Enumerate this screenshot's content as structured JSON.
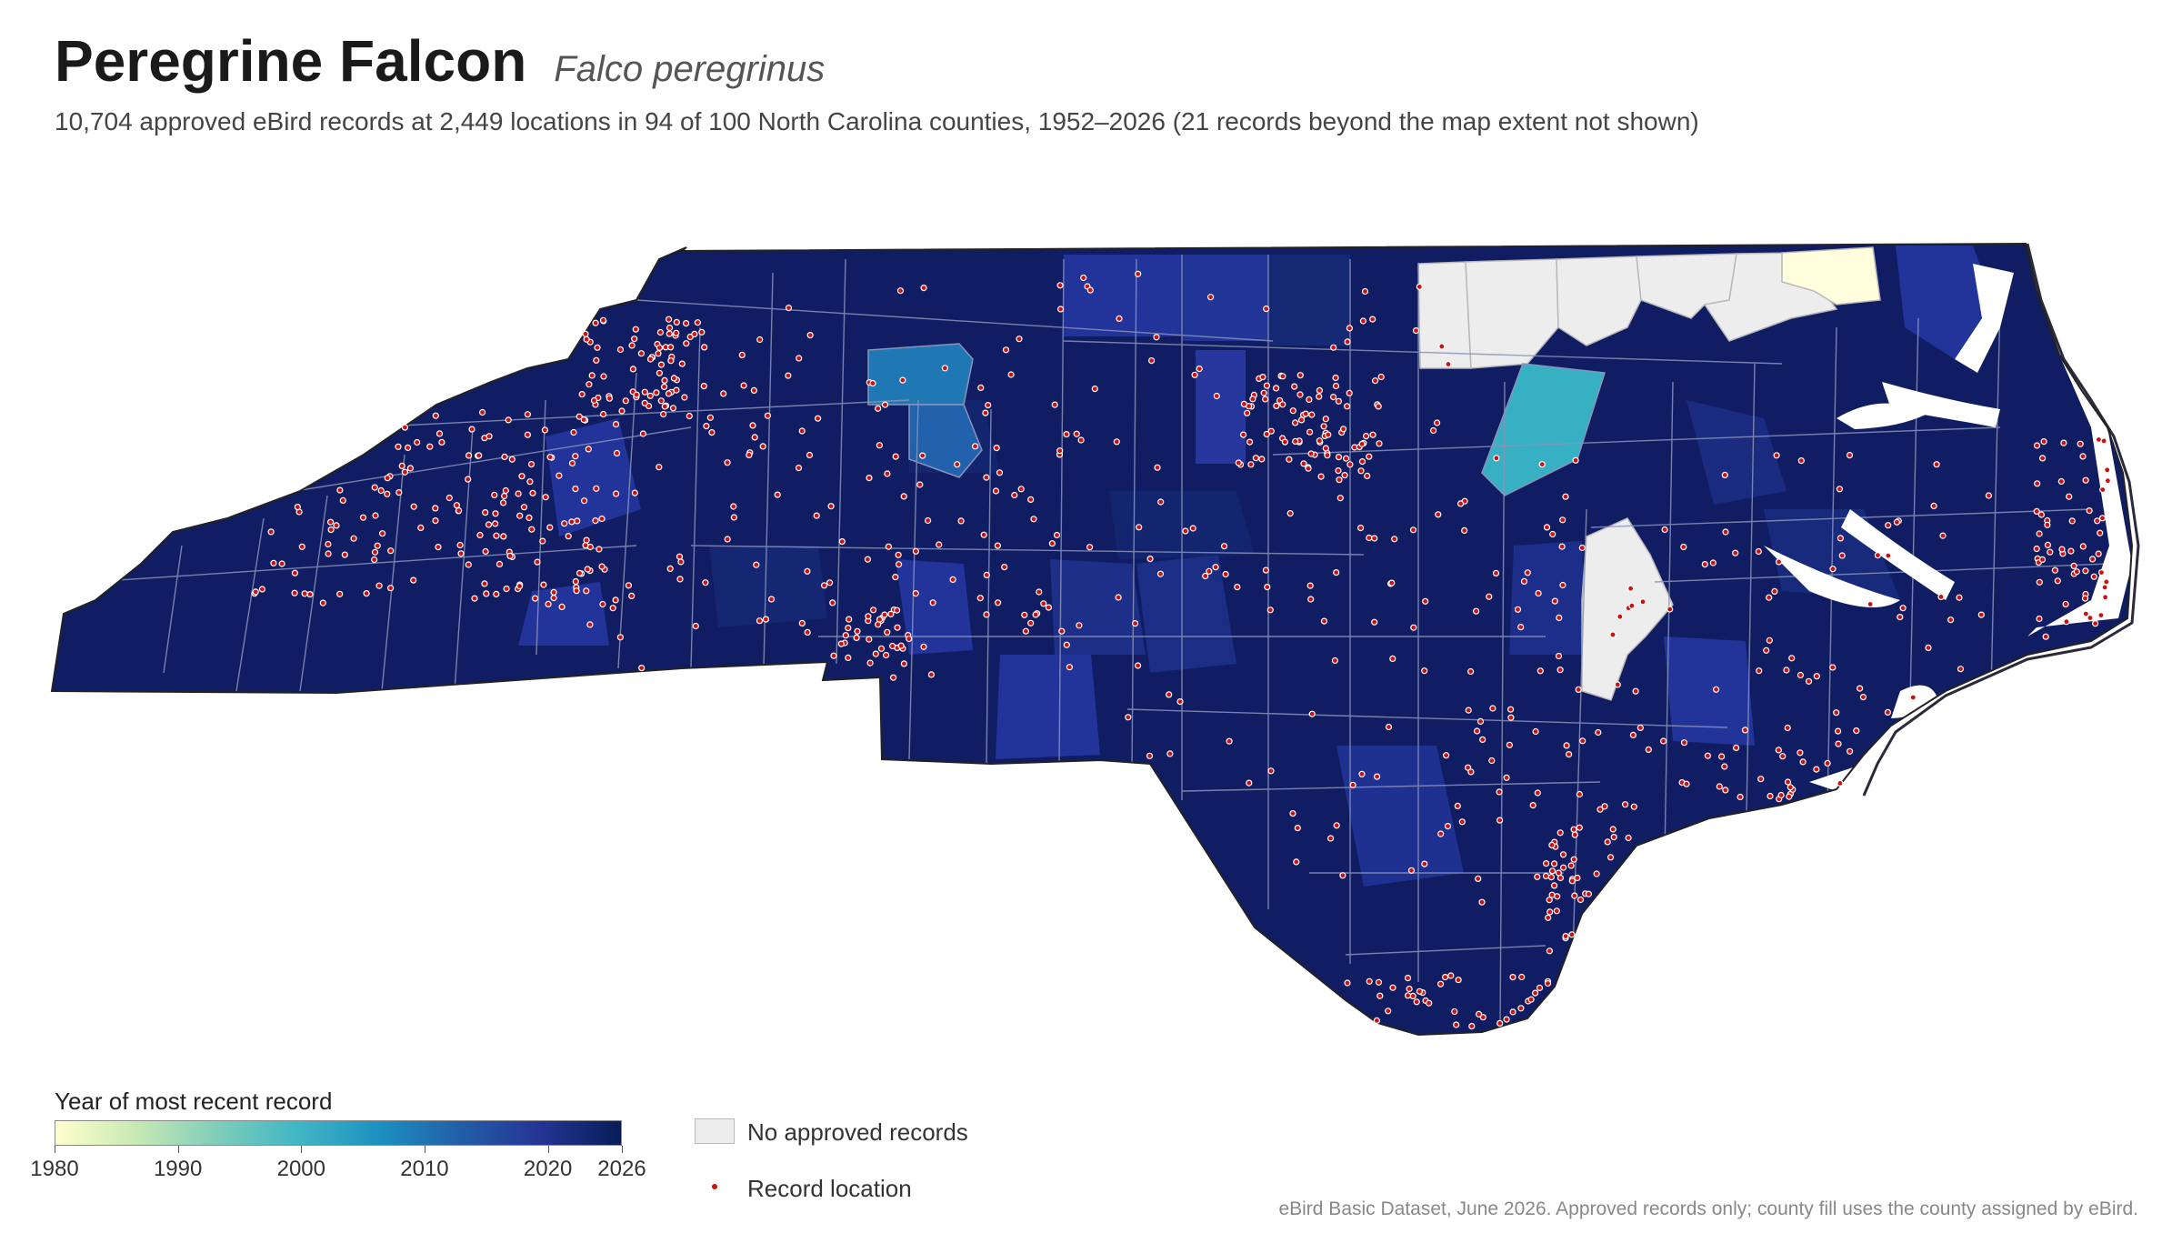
{
  "header": {
    "title": "Peregrine Falcon",
    "scientific_name": "Falco peregrinus",
    "summary": "10,704 approved eBird records at 2,449 locations in 94 of 100 North Carolina counties, 1952–2026 (21 records beyond the map extent not shown)"
  },
  "legend": {
    "title": "Year of most recent record",
    "ticks": [
      "1980",
      "1990",
      "2000",
      "2010",
      "2020",
      "2026"
    ],
    "range": [
      1980,
      2026
    ],
    "gradient_colors": [
      "#ffffcc",
      "#c7e9b4",
      "#7fcdbb",
      "#41b6c4",
      "#1d91c0",
      "#225ea8",
      "#253494",
      "#081d58"
    ],
    "no_records_label": "No approved records",
    "no_records_color": "#ededed",
    "record_location_label": "Record location",
    "record_color": "#cc1111"
  },
  "caption": "eBird Basic Dataset, June 2026. Approved records only; county fill uses the county assigned by eBird.",
  "map_data": {
    "state_outline_color": "#222222",
    "county_border_color": "#8a93b8",
    "highlighted_counties": [
      {
        "label": "most-recent-1980",
        "year": 1980,
        "color": "#ffffdd"
      },
      {
        "label": "most-recent-2005",
        "year": 2005,
        "color": "#38b0c4"
      },
      {
        "label": "most-recent-2010",
        "year": 2010,
        "color": "#1f78b4"
      },
      {
        "label": "most-recent-2013",
        "year": 2013,
        "color": "#2262ac"
      },
      {
        "label": "most-recent-2018",
        "year": 2018,
        "color": "#22339a"
      }
    ],
    "no_record_counties": 6
  }
}
